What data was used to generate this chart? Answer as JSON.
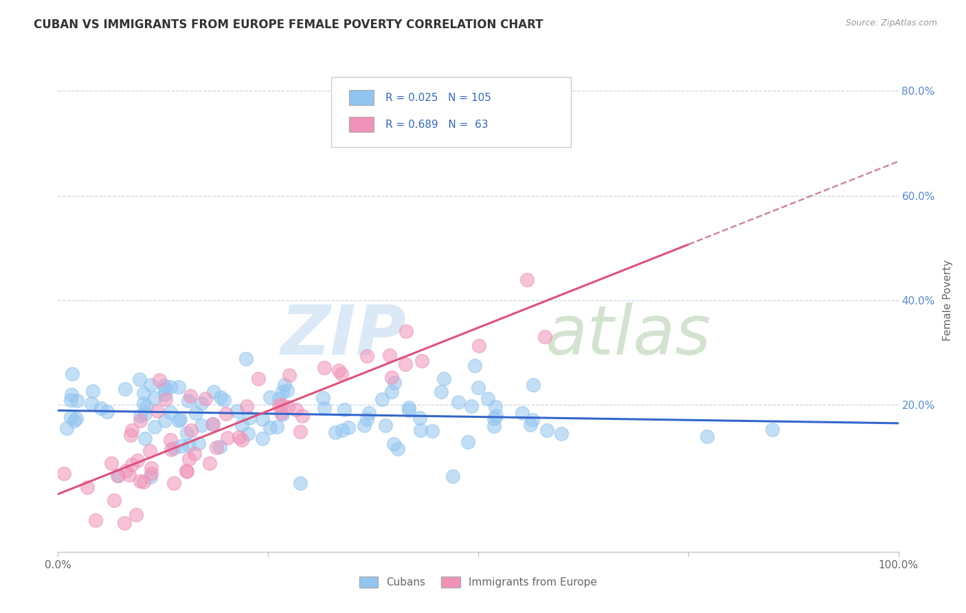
{
  "title": "CUBAN VS IMMIGRANTS FROM EUROPE FEMALE POVERTY CORRELATION CHART",
  "source": "Source: ZipAtlas.com",
  "ylabel": "Female Poverty",
  "xlim": [
    0.0,
    1.0
  ],
  "ylim": [
    -0.08,
    0.88
  ],
  "ytick_values": [
    0.2,
    0.4,
    0.6,
    0.8
  ],
  "legend_label1": "Cubans",
  "legend_label2": "Immigrants from Europe",
  "r1": 0.025,
  "n1": 105,
  "r2": 0.689,
  "n2": 63,
  "cubans_color": "#92c5f0",
  "europe_color": "#f092b8",
  "trendline1_color": "#3366cc",
  "trendline2_color": "#e0507a",
  "trendline2_dashed_color": "#d08898",
  "watermark_zip_color": "#b8d4f0",
  "watermark_atlas_color": "#a8c8a0",
  "background_color": "#ffffff",
  "grid_color": "#c8d4e4",
  "title_color": "#333333",
  "source_color": "#999999",
  "ytick_color": "#5588dd",
  "text_color": "#666666",
  "legend_r_n_color": "#3366cc",
  "legend_text_color": "#333333"
}
